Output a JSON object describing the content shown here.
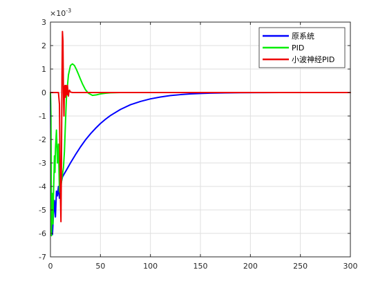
{
  "chart_data": {
    "type": "line",
    "title": "",
    "xlabel": "",
    "ylabel": "",
    "xlim": [
      0,
      300
    ],
    "ylim": [
      -7,
      3
    ],
    "y_exponent_label": "×10",
    "y_exponent_power": "-3",
    "y_scale_factor": 0.001,
    "grid": true,
    "legend_position": "top-right",
    "x_ticks": [
      0,
      50,
      100,
      150,
      200,
      250,
      300
    ],
    "x_tick_labels": [
      "0",
      "50",
      "100",
      "150",
      "200",
      "250",
      "300"
    ],
    "y_ticks": [
      3,
      2,
      1,
      0,
      -1,
      -2,
      -3,
      -4,
      -5,
      -6,
      -7
    ],
    "y_tick_labels": [
      "3",
      "2",
      "1",
      "0",
      "-1",
      "-2",
      "-3",
      "-4",
      "-5",
      "-6",
      "-7"
    ],
    "series": [
      {
        "name": "原系统",
        "color": "#0000ff",
        "x": [
          0,
          1,
          2,
          3,
          4,
          5,
          6,
          7,
          8,
          9,
          10,
          11,
          12,
          14,
          16,
          18,
          20,
          25,
          30,
          35,
          40,
          45,
          50,
          55,
          60,
          70,
          80,
          90,
          100,
          110,
          120,
          130,
          140,
          150,
          160,
          175,
          190,
          210,
          230,
          260,
          300
        ],
        "y": [
          0,
          -6.0,
          -6.05,
          -5.2,
          -4.6,
          -5.3,
          -4.2,
          -4.4,
          -4.0,
          -4.5,
          -4.0,
          -3.8,
          -3.6,
          -3.45,
          -3.3,
          -3.15,
          -3.0,
          -2.65,
          -2.32,
          -2.02,
          -1.76,
          -1.53,
          -1.32,
          -1.14,
          -0.98,
          -0.72,
          -0.52,
          -0.38,
          -0.27,
          -0.19,
          -0.13,
          -0.09,
          -0.06,
          -0.04,
          -0.025,
          -0.014,
          -0.007,
          -0.003,
          -0.001,
          0,
          0
        ]
      },
      {
        "name": "PID",
        "color": "#00ee00",
        "x": [
          0,
          0.5,
          1,
          1.5,
          2,
          2.5,
          3,
          3.5,
          4,
          4.5,
          5,
          6,
          7,
          8,
          9,
          10,
          11,
          12,
          13,
          14,
          15,
          16,
          18,
          20,
          22,
          24,
          26,
          28,
          30,
          32,
          35,
          38,
          42,
          46,
          50,
          55,
          60,
          70,
          80,
          300
        ],
        "y": [
          0,
          -1.0,
          -6.1,
          -5.0,
          -4.3,
          -5.6,
          -4.4,
          -3.6,
          -2.7,
          -3.4,
          -2.4,
          -1.6,
          -3.0,
          -2.2,
          -4.2,
          -4.3,
          -3.8,
          -3.5,
          -3.2,
          -2.5,
          -1.3,
          -0.2,
          0.75,
          1.15,
          1.22,
          1.15,
          0.98,
          0.78,
          0.57,
          0.37,
          0.12,
          -0.03,
          -0.12,
          -0.1,
          -0.06,
          -0.03,
          -0.01,
          0,
          0,
          0
        ]
      },
      {
        "name": "小波神经PID",
        "color": "#ee0000",
        "x": [
          0,
          8,
          9,
          10,
          10.5,
          11,
          11.5,
          12,
          12.5,
          13,
          13.5,
          14,
          14.5,
          15,
          15.5,
          16,
          16.5,
          17,
          17.5,
          18,
          18.5,
          19,
          20,
          22,
          25,
          30,
          300
        ],
        "y": [
          0,
          0,
          -0.5,
          -4.5,
          -5.5,
          -3.0,
          0.5,
          2.6,
          2.2,
          0.0,
          -1.0,
          0.2,
          0.3,
          -0.2,
          0.3,
          0.25,
          -0.1,
          0.3,
          0.05,
          -0.15,
          0.05,
          0.1,
          0.02,
          0.0,
          0.0,
          0.0,
          0.0
        ]
      }
    ]
  }
}
